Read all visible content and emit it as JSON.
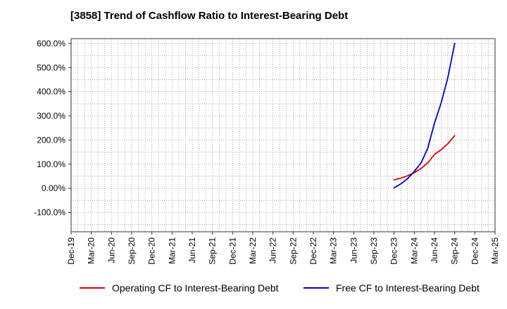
{
  "title": "[3858]  Trend of Cashflow Ratio to Interest-Bearing Debt",
  "colors": {
    "operating": "#e00000",
    "free": "#0000cc",
    "grid": "#999999",
    "axis": "#333333"
  },
  "chart_data": {
    "type": "line",
    "title": "[3858]  Trend of Cashflow Ratio to Interest-Bearing Debt",
    "xlabel": "",
    "ylabel": "",
    "ylim": [
      -180,
      620
    ],
    "y_ticks": [
      600,
      500,
      400,
      300,
      200,
      100,
      0,
      -100
    ],
    "y_tick_labels": [
      "600.0%",
      "500.0%",
      "400.0%",
      "300.0%",
      "200.0%",
      "100.0%",
      "0.00%",
      "-100.0%"
    ],
    "x_tick_labels": [
      "Dec-19",
      "Mar-20",
      "Jun-20",
      "Sep-20",
      "Dec-20",
      "Mar-21",
      "Jun-21",
      "Sep-21",
      "Dec-21",
      "Mar-22",
      "Jun-22",
      "Sep-22",
      "Dec-22",
      "Mar-23",
      "Jun-23",
      "Sep-23",
      "Dec-23",
      "Mar-24",
      "Jun-24",
      "Sep-24",
      "Dec-24",
      "Mar-25"
    ],
    "grid": true,
    "legend_position": "bottom",
    "series": [
      {
        "name": "Operating CF to Interest-Bearing Debt",
        "color": "#e00000",
        "x": [
          "Dec-23",
          "Jan-24",
          "Feb-24",
          "Mar-24",
          "Apr-24",
          "May-24",
          "Jun-24",
          "Jul-24",
          "Aug-24",
          "Sep-24"
        ],
        "values": [
          35,
          42,
          52,
          65,
          82,
          105,
          140,
          160,
          185,
          218
        ]
      },
      {
        "name": "Free CF to Interest-Bearing Debt",
        "color": "#0000cc",
        "x": [
          "Dec-23",
          "Jan-24",
          "Feb-24",
          "Mar-24",
          "Apr-24",
          "May-24",
          "Jun-24",
          "Jul-24",
          "Aug-24",
          "Sep-24"
        ],
        "values": [
          2,
          18,
          40,
          70,
          105,
          165,
          270,
          355,
          460,
          600
        ]
      }
    ]
  }
}
